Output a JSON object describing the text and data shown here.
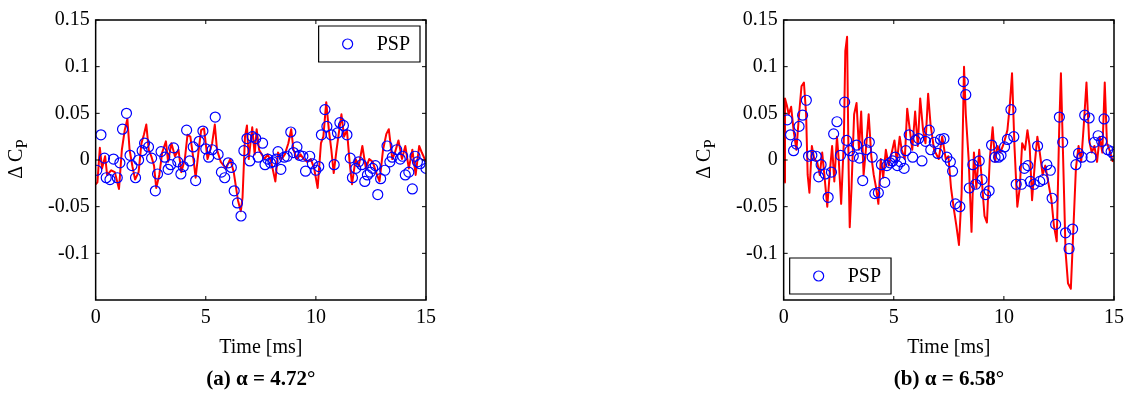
{
  "chart_data": [
    {
      "type": "line",
      "xlabel": "Time [ms]",
      "ylabel": "Δ C$_{P}$",
      "xlim": [
        0,
        15
      ],
      "ylim": [
        -0.15,
        0.15
      ],
      "xticks": [
        0,
        5,
        10,
        15
      ],
      "yticks": [
        -0.1,
        -0.05,
        0,
        0.05,
        0.1,
        0.15
      ],
      "grid": false,
      "legend": "top right",
      "annotations": [
        "(a) α = 4.72°"
      ],
      "series": [
        {
          "type": "line",
          "color": "#ff0000",
          "line_style": "solid",
          "marker": "none",
          "x": [
            0,
            0.08,
            0.19,
            0.29,
            0.43,
            0.52,
            0.71,
            0.87,
            1.06,
            1.19,
            1.32,
            1.44,
            1.54,
            1.67,
            1.79,
            1.95,
            2.08,
            2.19,
            2.3,
            2.41,
            2.54,
            2.65,
            2.75,
            2.89,
            3.02,
            3.19,
            3.29,
            3.44,
            3.6,
            3.76,
            3.89,
            4.05,
            4.17,
            4.3,
            4.44,
            4.54,
            4.68,
            4.79,
            4.92,
            5.08,
            5.29,
            5.41,
            5.51,
            5.68,
            5.92,
            6.11,
            6.27,
            6.46,
            6.59,
            6.67,
            6.78,
            6.87,
            6.95,
            7.11,
            7.22,
            7.31,
            7.42,
            7.66,
            7.81,
            7.97,
            8.16,
            8.28,
            8.44,
            8.59,
            8.75,
            8.88,
            8.98,
            9.14,
            9.3,
            9.45,
            9.61,
            9.77,
            9.92,
            10.08,
            10.23,
            10.34,
            10.47,
            10.59,
            10.7,
            10.81,
            10.94,
            11.06,
            11.16,
            11.28,
            11.41,
            11.53,
            11.64,
            11.8,
            11.95,
            12.11,
            12.27,
            12.42,
            12.58,
            12.73,
            12.89,
            13.05,
            13.2,
            13.31,
            13.47,
            13.59,
            13.75,
            13.91,
            14.06,
            14.22,
            14.38,
            14.53,
            14.69,
            14.81,
            15
          ],
          "values": [
            -0.026,
            -0.024,
            0.013,
            -0.009,
            0.004,
            -0.016,
            -0.011,
            -0.013,
            -0.031,
            0.011,
            0.032,
            0.044,
            0.011,
            -0.007,
            -0.021,
            -0.013,
            0.018,
            0.027,
            0.038,
            0.011,
            0.003,
            -0.006,
            -0.03,
            -0.016,
            0.008,
            0.02,
            -0.002,
            0.018,
            0.004,
            0.011,
            -0.013,
            0.001,
            0.027,
            0.025,
            0.001,
            -0.019,
            0.011,
            0.032,
            0.034,
            0.001,
            0.018,
            0.038,
            0.011,
            -0.002,
            -0.009,
            0.001,
            -0.013,
            -0.043,
            -0.055,
            -0.04,
            0.025,
            0.037,
            0.001,
            0.035,
            0.006,
            0.033,
            0.011,
            0.001,
            0.006,
            -0.002,
            -0.023,
            0.008,
            0.001,
            0.006,
            0.018,
            0.033,
            0.011,
            0.001,
            0.006,
            0.001,
            -0.002,
            0.001,
            -0.009,
            -0.03,
            0.018,
            0.025,
            0.062,
            0.032,
            0.011,
            -0.014,
            0.011,
            0.032,
            0.049,
            0.025,
            0.032,
            -0.002,
            -0.026,
            0.001,
            -0.006,
            0.015,
            -0.009,
            0.001,
            -0.002,
            -0.013,
            -0.023,
            0.011,
            0.028,
            0.033,
            0.001,
            0.008,
            0.021,
            0.001,
            0.015,
            -0.009,
            0.011,
            -0.016,
            0.015,
            0.008,
            -0.002
          ]
        },
        {
          "type": "scatter",
          "name": "PSP",
          "color": "#0000ff",
          "marker": "circle",
          "x": [
            0.05,
            0.24,
            0.4,
            0.48,
            0.65,
            0.81,
            0.98,
            1.1,
            1.22,
            1.4,
            1.56,
            1.65,
            1.81,
            1.95,
            2.11,
            2.22,
            2.4,
            2.54,
            2.71,
            2.81,
            2.97,
            3.14,
            3.29,
            3.41,
            3.54,
            3.73,
            3.87,
            3.98,
            4.13,
            4.27,
            4.43,
            4.54,
            4.7,
            4.87,
            5,
            5.13,
            5.29,
            5.43,
            5.56,
            5.71,
            5.86,
            6.02,
            6.16,
            6.29,
            6.44,
            6.6,
            6.73,
            6.87,
            7.0,
            7.11,
            7.27,
            7.38,
            7.58,
            7.69,
            7.81,
            7.94,
            8.05,
            8.2,
            8.28,
            8.41,
            8.56,
            8.7,
            8.86,
            8.98,
            9.14,
            9.25,
            9.41,
            9.53,
            9.72,
            9.84,
            10,
            10.13,
            10.25,
            10.41,
            10.5,
            10.69,
            10.83,
            10.98,
            11.09,
            11.25,
            11.41,
            11.56,
            11.66,
            11.81,
            11.94,
            12.08,
            12.22,
            12.34,
            12.47,
            12.58,
            12.7,
            12.81,
            12.94,
            13.13,
            13.23,
            13.36,
            13.47,
            13.67,
            13.83,
            13.94,
            14.06,
            14.22,
            14.38,
            14.5,
            14.61,
            14.73,
            15
          ],
          "values": [
            -0.011,
            0.027,
            0.002,
            -0.019,
            -0.021,
            0.001,
            -0.019,
            -0.003,
            0.033,
            0.05,
            0.005,
            -0.006,
            -0.019,
            0,
            0.01,
            0.018,
            0.014,
            0.002,
            -0.033,
            -0.015,
            0.009,
            0.003,
            -0.01,
            -0.005,
            0.013,
            -0.002,
            -0.015,
            -0.007,
            0.032,
            -0.001,
            0.014,
            -0.022,
            0.02,
            0.031,
            0.012,
            0.003,
            0.011,
            0.046,
            0.006,
            -0.013,
            -0.019,
            -0.003,
            -0.008,
            -0.033,
            -0.046,
            -0.06,
            0.01,
            0.023,
            -0.001,
            0.025,
            0.023,
            0.003,
            0.018,
            -0.005,
            0.001,
            -0.003,
            -0.002,
            0.001,
            0.009,
            -0.01,
            0.003,
            0.004,
            0.03,
            0.008,
            0.014,
            0.005,
            0.004,
            -0.012,
            0.004,
            -0.004,
            -0.011,
            -0.007,
            0.027,
            0.054,
            0.036,
            0.027,
            -0.005,
            0.029,
            0.04,
            0.037,
            0.027,
            0.002,
            -0.019,
            -0.009,
            -0.002,
            -0.005,
            -0.023,
            -0.016,
            -0.013,
            -0.009,
            -0.006,
            -0.037,
            -0.02,
            -0.011,
            0.015,
            -0.002,
            0.003,
            0.011,
            0.001,
            0.004,
            -0.016,
            -0.013,
            -0.031,
            0.004,
            -0.002,
            -0.004,
            -0.009
          ]
        }
      ]
    },
    {
      "type": "line",
      "xlabel": "Time [ms]",
      "ylabel": "Δ C$_{P}$",
      "xlim": [
        0,
        15
      ],
      "ylim": [
        -0.15,
        0.15
      ],
      "xticks": [
        0,
        5,
        10,
        15
      ],
      "yticks": [
        -0.1,
        -0.05,
        0,
        0.05,
        0.1,
        0.15
      ],
      "grid": false,
      "legend": "bottom left",
      "annotations": [
        "(b) α = 6.58°"
      ],
      "series": [
        {
          "type": "line",
          "color": "#ff0000",
          "line_style": "solid",
          "marker": "none",
          "x": [
            0.03,
            0.06,
            0.14,
            0.23,
            0.34,
            0.45,
            0.58,
            0.7,
            0.81,
            0.92,
            1.02,
            1.09,
            1.17,
            1.28,
            1.39,
            1.52,
            1.64,
            1.75,
            1.86,
            1.98,
            2.11,
            2.2,
            2.3,
            2.42,
            2.5,
            2.61,
            2.73,
            2.8,
            2.88,
            2.95,
            3,
            3.08,
            3.2,
            3.31,
            3.42,
            3.52,
            3.63,
            3.73,
            3.86,
            3.98,
            4.09,
            4.2,
            4.3,
            4.41,
            4.52,
            4.64,
            4.77,
            4.91,
            5.03,
            5.14,
            5.27,
            5.36,
            5.5,
            5.61,
            5.73,
            5.84,
            5.97,
            6.09,
            6.2,
            6.33,
            6.44,
            6.56,
            6.67,
            6.83,
            7.04,
            7.2,
            7.36,
            7.48,
            7.6,
            7.73,
            7.84,
            7.96,
            8.08,
            8.19,
            8.27,
            8.4,
            8.53,
            8.64,
            8.75,
            8.88,
            8.99,
            9.12,
            9.23,
            9.36,
            9.49,
            9.6,
            9.71,
            9.84,
            10,
            10.16,
            10.27,
            10.37,
            10.48,
            10.61,
            10.72,
            10.83,
            10.96,
            11.07,
            11.17,
            11.28,
            11.41,
            11.52,
            11.63,
            11.76,
            11.88,
            12.01,
            12.16,
            12.27,
            12.4,
            12.51,
            12.59,
            12.68,
            12.8,
            12.91,
            13.04,
            13.15,
            13.27,
            13.39,
            13.51,
            13.63,
            13.75,
            13.87,
            13.99,
            14.11,
            14.23,
            14.35,
            14.47,
            14.58,
            14.68,
            14.79,
            14.95
          ],
          "values": [
            -0.024,
            0.066,
            0.059,
            0.049,
            0.057,
            0.032,
            0.011,
            0.049,
            0.079,
            0.083,
            0.049,
            -0.016,
            -0.035,
            0.015,
            0.001,
            -0.002,
            -0.016,
            0.008,
            -0.019,
            -0.05,
            -0.009,
            0.015,
            -0.023,
            0.025,
            0.001,
            -0.047,
            0.018,
            0.117,
            0.132,
            -0.009,
            -0.072,
            -0.03,
            0.049,
            0.061,
            0.011,
            0.052,
            -0.016,
            0.01,
            0.049,
            0.004,
            -0.016,
            -0.03,
            -0.047,
            0.001,
            -0.019,
            0.011,
            -0.006,
            0.008,
            0.021,
            -0.002,
            0.025,
            0.011,
            0.001,
            0.055,
            0.032,
            0.011,
            0.052,
            0.015,
            0.066,
            0.032,
            0.018,
            0.071,
            0.038,
            0.011,
            0.001,
            0.025,
            0.001,
            0.004,
            -0.03,
            -0.053,
            -0.07,
            -0.091,
            -0.036,
            0.1,
            0.049,
            0.001,
            -0.077,
            0.008,
            -0.03,
            0.011,
            -0.019,
            -0.06,
            -0.067,
            0.001,
            0.035,
            -0.002,
            0.015,
            0.008,
            0.018,
            0.032,
            0.059,
            0.093,
            0.015,
            -0.05,
            -0.03,
            0.018,
            0.011,
            0.032,
            0.015,
            -0.043,
            -0.002,
            0.025,
            0.008,
            -0.016,
            -0.006,
            -0.023,
            -0.043,
            -0.07,
            -0.087,
            0.032,
            0.093,
            0.011,
            -0.098,
            -0.132,
            -0.138,
            -0.077,
            -0.009,
            0.015,
            -0.002,
            0.038,
            0.083,
            0.021,
            0.008,
            0.015,
            -0.002,
            0.025,
            0.008,
            0.083,
            0.018,
            0.011,
            -0.002
          ]
        },
        {
          "type": "scatter",
          "name": "PSP",
          "color": "#0000ff",
          "marker": "circle",
          "x": [
            0.16,
            0.31,
            0.45,
            0.58,
            0.7,
            0.86,
            1.03,
            1.13,
            1.28,
            1.48,
            1.59,
            1.7,
            1.89,
            2.02,
            2.17,
            2.27,
            2.42,
            2.58,
            2.77,
            2.86,
            3,
            3.16,
            3.31,
            3.44,
            3.59,
            3.75,
            3.89,
            4.02,
            4.14,
            4.3,
            4.44,
            4.59,
            4.69,
            4.83,
            4.95,
            5.06,
            5.16,
            5.31,
            5.47,
            5.55,
            5.7,
            5.86,
            5.98,
            6.13,
            6.28,
            6.44,
            6.61,
            6.68,
            6.84,
            7,
            7.12,
            7.28,
            7.41,
            7.57,
            7.67,
            7.8,
            8,
            8.16,
            8.27,
            8.43,
            8.59,
            8.72,
            8.88,
            9.01,
            9.17,
            9.33,
            9.44,
            9.6,
            9.76,
            9.87,
            10.03,
            10.16,
            10.32,
            10.45,
            10.56,
            10.8,
            10.93,
            11.09,
            11.2,
            11.37,
            11.53,
            11.63,
            11.79,
            11.95,
            12.11,
            12.19,
            12.35,
            12.52,
            12.67,
            12.8,
            12.96,
            13.12,
            13.27,
            13.39,
            13.55,
            13.67,
            13.87,
            13.96,
            14.11,
            14.28,
            14.44,
            14.55,
            14.71,
            14.87,
            15
          ],
          "values": [
            0.043,
            0.027,
            0.01,
            0.017,
            0.036,
            0.048,
            0.064,
            0.004,
            0.005,
            0.004,
            -0.018,
            -0.005,
            -0.015,
            -0.04,
            -0.013,
            0.028,
            0.041,
            0.005,
            0.062,
            0.021,
            0.01,
            0.004,
            0.016,
            0.002,
            -0.022,
            0.011,
            0.019,
            0.003,
            -0.036,
            -0.035,
            -0.005,
            -0.024,
            -0.006,
            -0.003,
            -0.001,
            0.003,
            -0.006,
            -0.002,
            -0.009,
            0.01,
            0.027,
            0.003,
            0.021,
            0.023,
            -0.001,
            0.02,
            0.032,
            0.011,
            0.019,
            0.007,
            0.022,
            0.023,
            0.003,
            -0.002,
            -0.012,
            -0.047,
            -0.05,
            0.084,
            0.07,
            -0.03,
            -0.005,
            -0.026,
            -0.001,
            -0.021,
            -0.037,
            -0.033,
            0.016,
            0.003,
            0.003,
            0.005,
            0.014,
            0.022,
            0.054,
            0.025,
            -0.026,
            -0.026,
            -0.009,
            -0.006,
            -0.023,
            -0.026,
            0.015,
            -0.023,
            -0.021,
            -0.005,
            -0.011,
            -0.041,
            -0.069,
            0.046,
            0.019,
            -0.078,
            -0.095,
            -0.074,
            -0.005,
            0.007,
            0.003,
            0.048,
            0.045,
            0.003,
            0.019,
            0.026,
            0.02,
            0.044,
            0.011,
            0.009,
            0.006
          ]
        }
      ]
    }
  ]
}
